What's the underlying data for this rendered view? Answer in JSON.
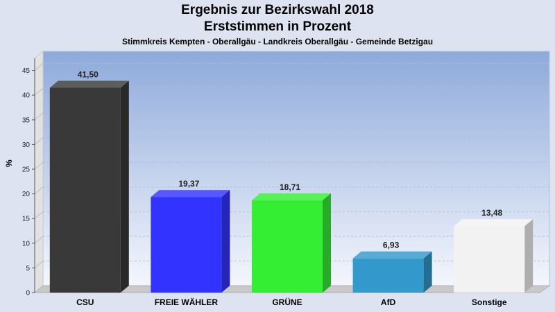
{
  "chart_data": {
    "type": "bar",
    "title": "Ergebnis zur Bezirkswahl 2018",
    "title_line2": "Erststimmen in Prozent",
    "subtitle": "Stimmkreis Kempten - Oberallgäu - Landkreis Oberallgäu - Gemeinde Betzigau",
    "ylabel": "%",
    "xlabel": "",
    "ylim": [
      0,
      47
    ],
    "yticks": [
      0,
      5,
      10,
      15,
      20,
      25,
      30,
      35,
      40,
      45
    ],
    "grid": true,
    "categories": [
      "CSU",
      "FREIE WÄHLER",
      "GRÜNE",
      "AfD",
      "Sonstige"
    ],
    "values": [
      41.5,
      19.37,
      18.71,
      6.93,
      13.48
    ],
    "value_labels": [
      "41,50",
      "19,37",
      "18,71",
      "6,93",
      "13,48"
    ],
    "colors": [
      "#393939",
      "#3333ff",
      "#33ee33",
      "#3399cc",
      "#f2f2f2"
    ]
  }
}
